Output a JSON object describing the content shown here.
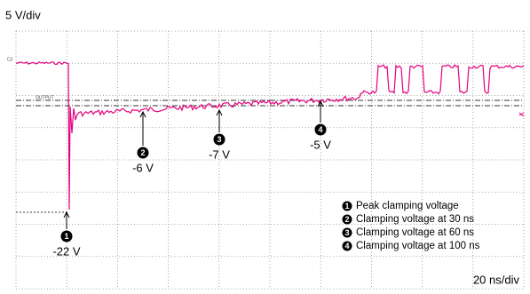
{
  "scale": {
    "vertical": "5 V/div",
    "horizontal": "20 ns/div"
  },
  "trace_labels": {
    "channel": "C2",
    "reference": "OUTPUT"
  },
  "markers": [
    {
      "number": "1",
      "voltage": "-22 V"
    },
    {
      "number": "2",
      "voltage": "-6 V"
    },
    {
      "number": "3",
      "voltage": "-7 V"
    },
    {
      "number": "4",
      "voltage": "-5 V"
    }
  ],
  "legend": [
    "Peak clamping voltage",
    "Clamping voltage at 30 ns",
    "Clamping voltage at 60 ns",
    "Clamping voltage at 100 ns"
  ]
}
